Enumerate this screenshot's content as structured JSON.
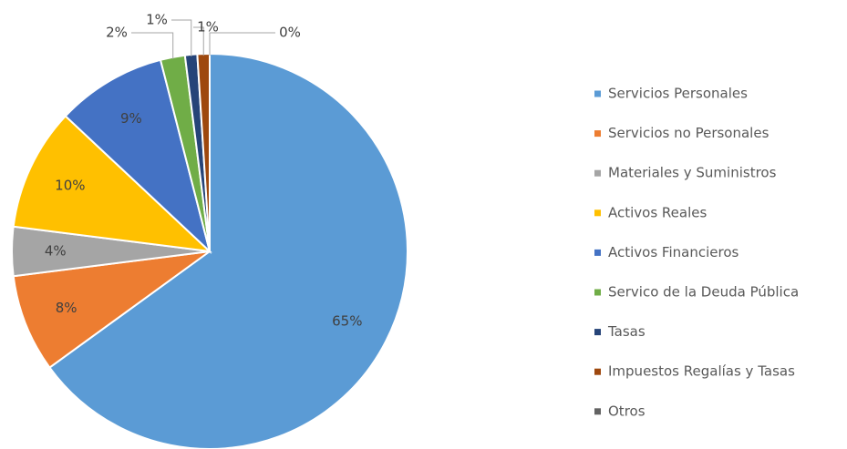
{
  "chart_data": {
    "type": "pie",
    "categories": [
      "Servicios Personales",
      "Servicios no Personales",
      "Materiales y Suministros",
      "Activos Reales",
      "Activos Financieros",
      "Servico de la Deuda Pública",
      "Tasas",
      "Impuestos Regalías y Tasas",
      "Otros"
    ],
    "values": [
      65,
      8,
      4,
      10,
      9,
      2,
      1,
      1,
      0
    ],
    "value_labels": [
      "65%",
      "8%",
      "4%",
      "10%",
      "9%",
      "2%",
      "1%",
      "1%",
      "0%"
    ],
    "colors": [
      "#5b9bd5",
      "#ed7d31",
      "#a5a5a5",
      "#ffc000",
      "#4472c4",
      "#70ad47",
      "#264478",
      "#9e480e",
      "#636363"
    ],
    "legend": "right"
  }
}
